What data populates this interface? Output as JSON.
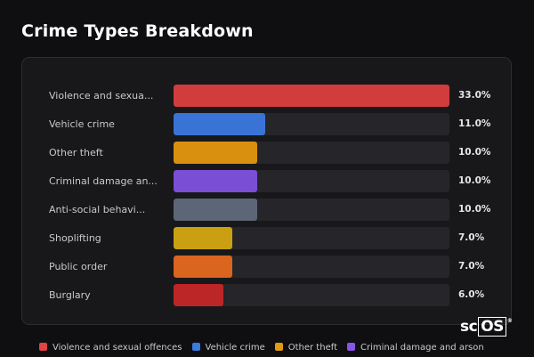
{
  "title": "Crime Types Breakdown",
  "logo": {
    "prefix": "sc",
    "boxed": "OS"
  },
  "chart_data": {
    "type": "bar",
    "orientation": "horizontal",
    "title": "Crime Types Breakdown",
    "xlim": [
      0,
      33
    ],
    "categories": [
      "Violence and sexua...",
      "Vehicle crime",
      "Other theft",
      "Criminal damage an...",
      "Anti-social behavi...",
      "Shoplifting",
      "Public order",
      "Burglary"
    ],
    "values": [
      33.0,
      11.0,
      10.0,
      10.0,
      10.0,
      7.0,
      7.0,
      6.0
    ],
    "value_labels": [
      "33.0%",
      "11.0%",
      "10.0%",
      "10.0%",
      "10.0%",
      "7.0%",
      "7.0%",
      "6.0%"
    ],
    "colors": [
      "#d13c3c",
      "#3a73d6",
      "#d9900f",
      "#7a4fd6",
      "#5d6677",
      "#caa012",
      "#d9651f",
      "#bd2626"
    ],
    "legend": [
      {
        "label": "Violence and sexual offences",
        "color": "#e04444"
      },
      {
        "label": "Vehicle crime",
        "color": "#3a7be0"
      },
      {
        "label": "Other theft",
        "color": "#e09a14"
      },
      {
        "label": "Criminal damage and arson",
        "color": "#8a55e6"
      }
    ]
  }
}
